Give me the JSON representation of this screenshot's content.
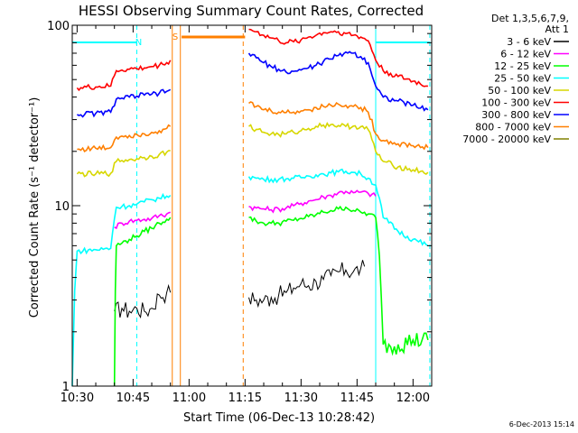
{
  "chart_data": {
    "type": "line",
    "title": "HESSI Observing Summary Count Rates, Corrected",
    "xlabel": "Start Time (06-Dec-13 10:28:42)",
    "ylabel": "Corrected Count Rate (s⁻¹ detector⁻¹)",
    "x_unit": "UT hh:mm",
    "xlim": [
      "10:28:42",
      "12:05:00"
    ],
    "ylim": [
      1,
      100
    ],
    "yscale": "log",
    "x_ticks": [
      "10:30",
      "10:45",
      "11:00",
      "11:15",
      "11:30",
      "11:45",
      "12:00"
    ],
    "y_ticks": [
      "1",
      "10",
      "100"
    ],
    "grid": false,
    "legend_position": "right",
    "legend_header": [
      "Det 1,3,5,6,7,9,",
      "Att 1"
    ],
    "legend_entries": [
      {
        "label": "3 - 6 keV",
        "color": "#000000"
      },
      {
        "label": "6 - 12 keV",
        "color": "#ff00ff"
      },
      {
        "label": "12 - 25 keV",
        "color": "#00ff00"
      },
      {
        "label": "25 - 50 keV",
        "color": "#00ffff"
      },
      {
        "label": "50 - 100 keV",
        "color": "#d7d700"
      },
      {
        "label": "100 - 300 keV",
        "color": "#ff0000"
      },
      {
        "label": "300 - 800 keV",
        "color": "#0000ff"
      },
      {
        "label": "800 - 7000 keV",
        "color": "#ff7f00"
      },
      {
        "label": "7000 - 20000 keV",
        "color": "#808000"
      }
    ],
    "flags": [
      {
        "label": "N",
        "color": "#00ffff",
        "start": "10:28:42",
        "end": "10:46:00"
      },
      {
        "label": "S",
        "color": "#ff7f00",
        "start": "10:58:00",
        "end": "11:15:00"
      },
      {
        "label": "",
        "color": "#00ffff",
        "start": "11:50:00",
        "end": "12:04:30"
      }
    ],
    "vertical_lines": [
      {
        "time": "10:46:00",
        "color": "#00ffff",
        "style": "dashed"
      },
      {
        "time": "10:55:30",
        "color": "#ff7f00",
        "style": "solid"
      },
      {
        "time": "10:57:40",
        "color": "#ff7f00",
        "style": "solid"
      },
      {
        "time": "11:14:30",
        "color": "#ff7f00",
        "style": "dashed"
      },
      {
        "time": "11:50:00",
        "color": "#00ffff",
        "style": "solid"
      },
      {
        "time": "12:04:30",
        "color": "#00ffff",
        "style": "dashed"
      }
    ],
    "series": [
      {
        "name": "3 - 6 keV",
        "color": "#000000",
        "x": [
          "10:40",
          "10:42",
          "10:44",
          "10:46",
          "10:48",
          "10:50",
          "10:52",
          "10:54",
          "10:55",
          "11:16",
          "11:18",
          "11:20",
          "11:22",
          "11:24",
          "11:26",
          "11:28",
          "11:30",
          "11:32",
          "11:34",
          "11:36",
          "11:38",
          "11:40",
          "11:42",
          "11:44",
          "11:46",
          "11:47"
        ],
        "y": [
          2.6,
          2.7,
          2.6,
          2.7,
          2.6,
          2.7,
          3.2,
          3.3,
          3.3,
          3.1,
          3.0,
          3.0,
          3.1,
          3.2,
          3.3,
          3.5,
          3.7,
          3.6,
          3.8,
          3.9,
          4.1,
          4.3,
          4.4,
          4.3,
          4.5,
          4.6
        ]
      },
      {
        "name": "6 - 12 keV",
        "color": "#ff00ff",
        "x": [
          "10:40",
          "10:42",
          "10:44",
          "10:46",
          "10:48",
          "10:50",
          "10:52",
          "10:54",
          "10:55",
          "11:16",
          "11:18",
          "11:20",
          "11:22",
          "11:24",
          "11:26",
          "11:28",
          "11:30",
          "11:32",
          "11:34",
          "11:36",
          "11:38",
          "11:40",
          "11:42",
          "11:44",
          "11:46",
          "11:48",
          "11:50"
        ],
        "y": [
          7.6,
          8.0,
          8.2,
          8.3,
          8.4,
          8.5,
          8.8,
          9.0,
          9.2,
          9.9,
          9.7,
          9.6,
          9.5,
          9.6,
          9.7,
          10.0,
          10.3,
          10.6,
          10.8,
          11.2,
          11.4,
          11.8,
          12.0,
          11.8,
          11.9,
          11.7,
          11.3
        ]
      },
      {
        "name": "12 - 25 keV",
        "color": "#00ff00",
        "x": [
          "10:28:42",
          "10:40",
          "10:40:30",
          "10:42",
          "10:44",
          "10:46",
          "10:48",
          "10:50",
          "10:52",
          "10:54",
          "10:55",
          "11:16",
          "11:18",
          "11:20",
          "11:22",
          "11:24",
          "11:26",
          "11:28",
          "11:30",
          "11:32",
          "11:34",
          "11:36",
          "11:38",
          "11:40",
          "11:42",
          "11:44",
          "11:46",
          "11:48",
          "11:50",
          "11:52",
          "11:56",
          "12:00",
          "12:04"
        ],
        "y": [
          1,
          1,
          6.0,
          6.2,
          6.5,
          6.8,
          7.2,
          7.5,
          8.0,
          8.4,
          8.6,
          8.6,
          8.2,
          8.0,
          8.0,
          8.0,
          8.2,
          8.3,
          8.5,
          8.7,
          8.9,
          9.2,
          9.4,
          9.6,
          9.8,
          9.4,
          9.2,
          9.0,
          8.6,
          1.7,
          1.7,
          1.8,
          1.8
        ]
      },
      {
        "name": "25 - 50 keV",
        "color": "#00ffff",
        "x": [
          "10:28:42",
          "10:30",
          "10:35",
          "10:39",
          "10:40:30",
          "10:42",
          "10:44",
          "10:46",
          "10:48",
          "10:50",
          "10:52",
          "10:54",
          "10:55",
          "11:16",
          "11:18",
          "11:20",
          "11:22",
          "11:24",
          "11:26",
          "11:28",
          "11:30",
          "11:32",
          "11:34",
          "11:36",
          "11:38",
          "11:40",
          "11:42",
          "11:44",
          "11:46",
          "11:48",
          "11:50",
          "11:52",
          "11:56",
          "12:00",
          "12:04"
        ],
        "y": [
          1,
          5.6,
          5.7,
          5.8,
          9.8,
          9.9,
          10.0,
          10.2,
          10.5,
          10.8,
          11.0,
          11.3,
          11.4,
          14.5,
          14.2,
          14.0,
          14.0,
          14.0,
          14.1,
          14.2,
          14.3,
          14.6,
          14.8,
          15.0,
          15.2,
          15.4,
          15.5,
          15.3,
          15.0,
          14.2,
          13.0,
          8.6,
          7.2,
          6.5,
          6.0
        ]
      },
      {
        "name": "50 - 100 keV",
        "color": "#d7d700",
        "x": [
          "10:30",
          "10:35",
          "10:39",
          "10:40:30",
          "10:42",
          "10:44",
          "10:46",
          "10:48",
          "10:50",
          "10:52",
          "10:54",
          "10:55",
          "11:16",
          "11:18",
          "11:20",
          "11:22",
          "11:24",
          "11:26",
          "11:28",
          "11:30",
          "11:32",
          "11:34",
          "11:36",
          "11:38",
          "11:40",
          "11:42",
          "11:44",
          "11:46",
          "11:48",
          "11:50",
          "11:52",
          "11:56",
          "12:00",
          "12:04"
        ],
        "y": [
          15.0,
          15.0,
          15.1,
          17.6,
          17.8,
          18.0,
          18.2,
          18.5,
          18.8,
          19.2,
          19.8,
          20.2,
          27.5,
          26.5,
          25.5,
          25.0,
          24.8,
          25.0,
          25.5,
          26.0,
          26.8,
          27.5,
          28.0,
          28.2,
          27.8,
          27.5,
          27.6,
          27.4,
          26.4,
          20.0,
          17.6,
          16.4,
          15.8,
          15.3
        ]
      },
      {
        "name": "100 - 300 keV",
        "color": "#ff0000",
        "x": [
          "10:30",
          "10:35",
          "10:39",
          "10:40:30",
          "10:42",
          "10:44",
          "10:46",
          "10:48",
          "10:50",
          "10:52",
          "10:54",
          "10:55",
          "11:16",
          "11:18",
          "11:20",
          "11:22",
          "11:24",
          "11:26",
          "11:28",
          "11:30",
          "11:32",
          "11:34",
          "11:36",
          "11:38",
          "11:40",
          "11:42",
          "11:44",
          "11:46",
          "11:48",
          "11:50",
          "11:52",
          "11:56",
          "12:00",
          "12:04"
        ],
        "y": [
          45.0,
          45.5,
          46.0,
          56.0,
          56.5,
          57.0,
          57.5,
          58.0,
          59.0,
          60.0,
          62.0,
          64.0,
          95.0,
          92.0,
          88.0,
          85.0,
          82.0,
          80.0,
          81.0,
          83.0,
          86.0,
          88.0,
          91.0,
          92.0,
          92.0,
          90.0,
          88.0,
          86.0,
          82.0,
          64.0,
          56.0,
          52.0,
          49.0,
          46.0
        ]
      },
      {
        "name": "300 - 800 keV",
        "color": "#0000ff",
        "x": [
          "10:30",
          "10:35",
          "10:39",
          "10:40:30",
          "10:42",
          "10:44",
          "10:46",
          "10:48",
          "10:50",
          "10:52",
          "10:54",
          "10:55",
          "11:16",
          "11:18",
          "11:20",
          "11:22",
          "11:24",
          "11:26",
          "11:28",
          "11:30",
          "11:32",
          "11:34",
          "11:36",
          "11:38",
          "11:40",
          "11:42",
          "11:44",
          "11:46",
          "11:48",
          "11:50",
          "11:52",
          "11:56",
          "12:00",
          "12:04"
        ],
        "y": [
          32.0,
          32.5,
          33.0,
          39.0,
          39.5,
          40.0,
          40.5,
          41.0,
          41.5,
          42.0,
          43.0,
          44.0,
          70.0,
          66.0,
          62.0,
          59.0,
          57.0,
          55.0,
          55.5,
          56.5,
          58.0,
          60.0,
          63.0,
          65.0,
          68.0,
          71.0,
          70.0,
          67.0,
          62.0,
          46.0,
          40.0,
          38.0,
          36.0,
          34.0
        ]
      },
      {
        "name": "800 - 7000 keV",
        "color": "#ff7f00",
        "x": [
          "10:30",
          "10:35",
          "10:39",
          "10:40:30",
          "10:42",
          "10:44",
          "10:46",
          "10:48",
          "10:50",
          "10:52",
          "10:54",
          "10:55",
          "11:16",
          "11:18",
          "11:20",
          "11:22",
          "11:24",
          "11:26",
          "11:28",
          "11:30",
          "11:32",
          "11:34",
          "11:36",
          "11:38",
          "11:40",
          "11:42",
          "11:44",
          "11:46",
          "11:48",
          "11:50",
          "11:52",
          "11:56",
          "12:00",
          "12:04"
        ],
        "y": [
          20.5,
          20.8,
          21.0,
          24.0,
          24.3,
          24.5,
          24.8,
          25.0,
          25.5,
          26.0,
          26.8,
          27.5,
          37.0,
          35.5,
          34.0,
          33.5,
          33.0,
          32.8,
          33.0,
          33.5,
          34.0,
          35.0,
          35.5,
          36.0,
          36.5,
          36.0,
          35.5,
          35.0,
          33.0,
          25.0,
          23.0,
          22.0,
          21.5,
          21.0
        ]
      }
    ]
  },
  "footer": {
    "date_stamp": "6-Dec-2013 15:14"
  }
}
